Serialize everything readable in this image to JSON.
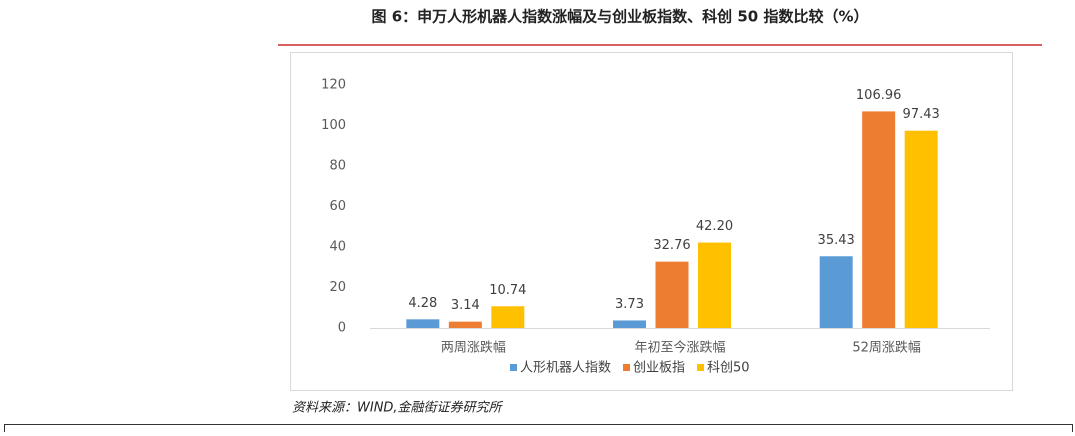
{
  "chart_data": {
    "type": "bar",
    "title": "图 6：申万人形机器人指数涨幅及与创业板指数、科创 50 指数比较（%）",
    "source": "资料来源：WIND,金融街证券研究所",
    "categories": [
      "两周涨跌幅",
      "年初至今涨跌幅",
      "52周涨跌幅"
    ],
    "series": [
      {
        "name": "人形机器人指数",
        "color": "#5b9bd5",
        "values": [
          4.28,
          3.73,
          35.43
        ],
        "value_labels": [
          "4.28",
          "3.73",
          "35.43"
        ]
      },
      {
        "name": "创业板指",
        "color": "#ed7d31",
        "values": [
          3.14,
          32.76,
          106.96
        ],
        "value_labels": [
          "3.14",
          "32.76",
          "106.96"
        ]
      },
      {
        "name": "科创50",
        "color": "#ffc000",
        "values": [
          10.74,
          42.2,
          97.43
        ],
        "value_labels": [
          "10.74",
          "42.20",
          "97.43"
        ]
      }
    ],
    "ylim": [
      0,
      120
    ],
    "yticks": [
      0,
      20,
      40,
      60,
      80,
      100,
      120
    ],
    "grid": false,
    "legend": "bottom"
  }
}
